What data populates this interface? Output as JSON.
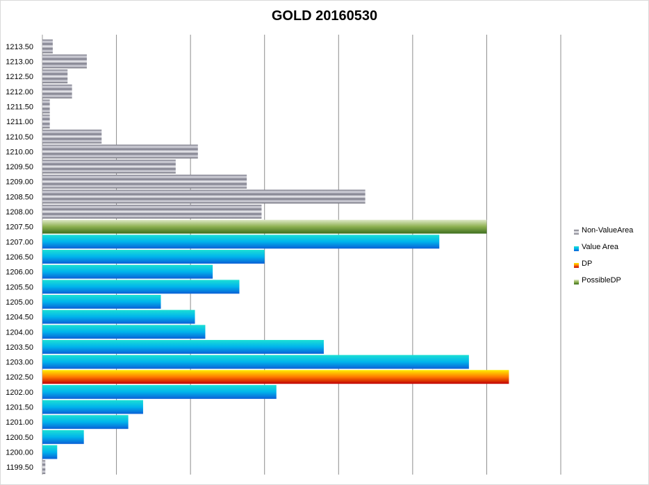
{
  "chart_data": {
    "type": "bar",
    "orientation": "horizontal",
    "title": "GOLD 20160530",
    "xlabel": "",
    "ylabel": "",
    "xlim": [
      0,
      350
    ],
    "x_gridlines": [
      0,
      50,
      100,
      150,
      200,
      250,
      300,
      350
    ],
    "x_tick_labels_visible": false,
    "grid": true,
    "legend_position": "right",
    "categories": [
      "1213.50",
      "1213.00",
      "1212.50",
      "1212.00",
      "1211.50",
      "1211.00",
      "1210.50",
      "1210.00",
      "1209.50",
      "1209.00",
      "1208.50",
      "1208.00",
      "1207.50",
      "1207.00",
      "1206.50",
      "1206.00",
      "1205.50",
      "1205.00",
      "1204.50",
      "1204.00",
      "1203.50",
      "1203.00",
      "1202.50",
      "1202.00",
      "1201.50",
      "1201.00",
      "1200.50",
      "1200.00",
      "1199.50"
    ],
    "values": [
      7,
      30,
      17,
      20,
      5,
      5,
      40,
      105,
      90,
      138,
      218,
      148,
      300,
      268,
      150,
      115,
      133,
      80,
      103,
      110,
      190,
      288,
      315,
      158,
      68,
      58,
      28,
      10,
      2
    ],
    "series_of_bar": [
      "Non-ValueArea",
      "Non-ValueArea",
      "Non-ValueArea",
      "Non-ValueArea",
      "Non-ValueArea",
      "Non-ValueArea",
      "Non-ValueArea",
      "Non-ValueArea",
      "Non-ValueArea",
      "Non-ValueArea",
      "Non-ValueArea",
      "Non-ValueArea",
      "PossibleDP",
      "Value Area",
      "Value Area",
      "Value Area",
      "Value Area",
      "Value Area",
      "Value Area",
      "Value Area",
      "Value Area",
      "Value Area",
      "DP",
      "Value Area",
      "Value Area",
      "Value Area",
      "Value Area",
      "Value Area",
      "Non-ValueArea"
    ],
    "series": [
      {
        "name": "Non-ValueArea",
        "colors": [
          "#6e6e7a",
          "#f2f2f5",
          "#6e6e7a"
        ]
      },
      {
        "name": "Value Area",
        "colors": [
          "#1ce0d4",
          "#00b4ec",
          "#0a5fd6"
        ]
      },
      {
        "name": "DP",
        "colors": [
          "#ffee00",
          "#ff7a00",
          "#c00000"
        ]
      },
      {
        "name": "PossibleDP",
        "colors": [
          "#dfe9c8",
          "#8db050",
          "#3d6e1e"
        ]
      }
    ]
  }
}
